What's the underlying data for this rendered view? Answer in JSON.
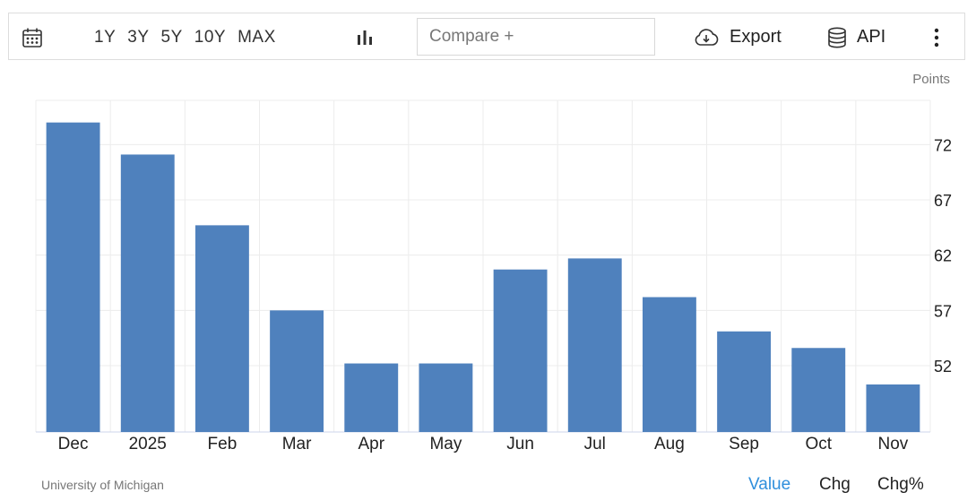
{
  "toolbar": {
    "ranges": [
      "1Y",
      "3Y",
      "5Y",
      "10Y",
      "MAX"
    ],
    "compare_placeholder": "Compare +",
    "export_label": "Export",
    "api_label": "API"
  },
  "source": "University of Michigan",
  "footer_tabs": {
    "value": "Value",
    "chg": "Chg",
    "chg_pct": "Chg%"
  },
  "colors": {
    "bar": "#4f81bd",
    "active_tab": "#2f8fdc",
    "grid": "#ececec"
  },
  "chart_data": {
    "type": "bar",
    "categories": [
      "Dec",
      "2025",
      "Feb",
      "Mar",
      "Apr",
      "May",
      "Jun",
      "Jul",
      "Aug",
      "Sep",
      "Oct",
      "Nov"
    ],
    "values": [
      74.0,
      71.1,
      64.7,
      57.0,
      52.2,
      52.2,
      60.7,
      61.7,
      58.2,
      55.1,
      53.6,
      50.3
    ],
    "ylabel": "Points",
    "yticks": [
      52,
      57,
      62,
      67,
      72
    ],
    "ylim": [
      46,
      76
    ],
    "y_axis_side": "right",
    "grid": true
  }
}
